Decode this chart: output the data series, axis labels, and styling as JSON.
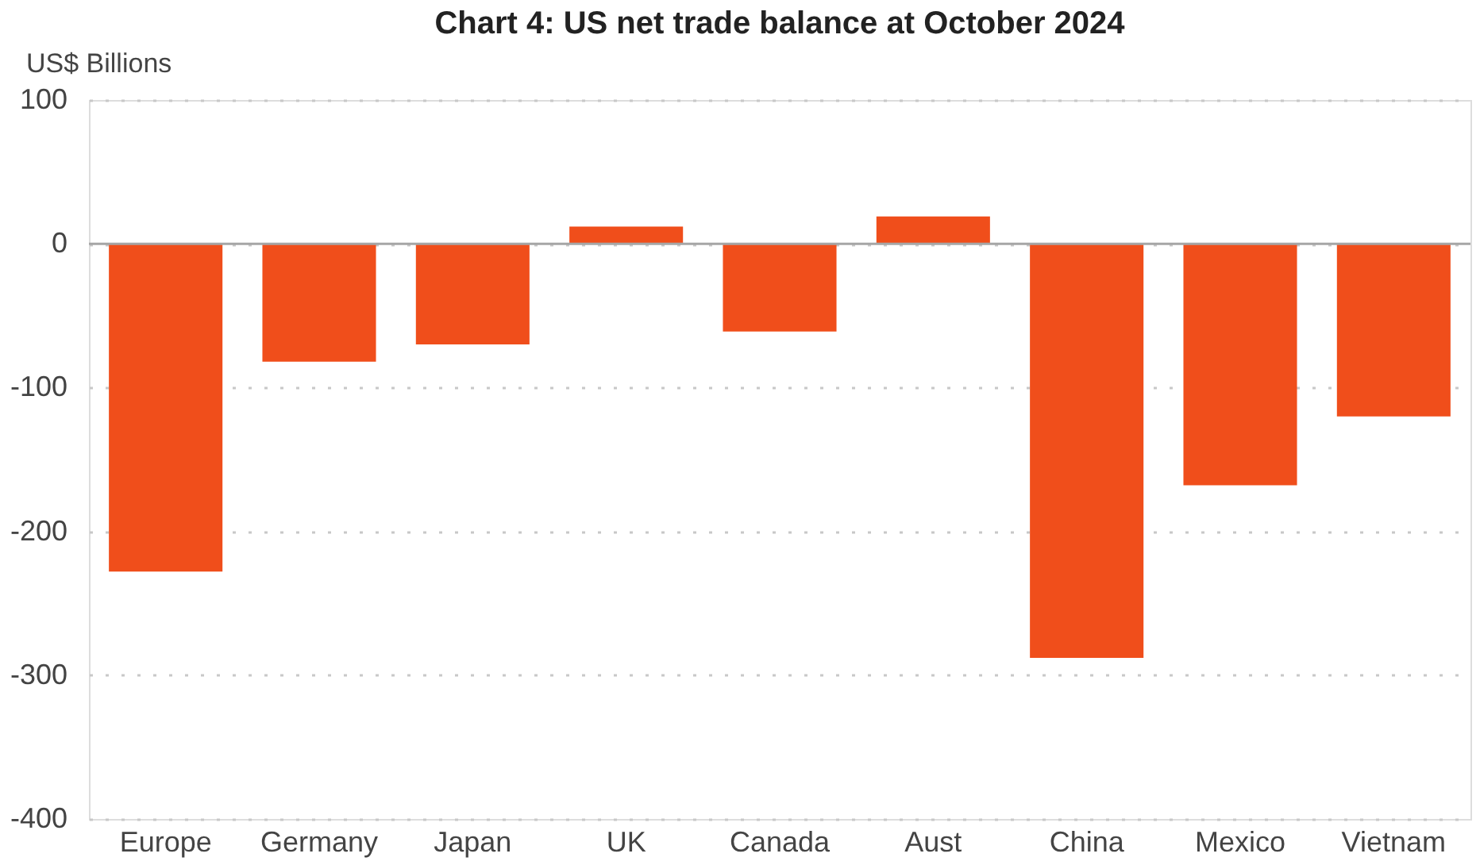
{
  "chart_data": {
    "type": "bar",
    "title": "Chart 4: US net trade balance at October 2024",
    "ylabel": "US$ Billions",
    "categories": [
      "Europe",
      "Germany",
      "Japan",
      "UK",
      "Canada",
      "Aust",
      "China",
      "Mexico",
      "Vietnam"
    ],
    "values": [
      -228,
      -82,
      -70,
      12,
      -61,
      19,
      -288,
      -168,
      -120
    ],
    "color": "#f04e1b",
    "ylim": [
      -400,
      100
    ],
    "yticks": [
      -400,
      -300,
      -200,
      -100,
      0,
      100
    ],
    "grid": "y",
    "ref_lines": [
      {
        "axis": "y",
        "value": 0,
        "color": "#a6a6a6"
      }
    ]
  }
}
